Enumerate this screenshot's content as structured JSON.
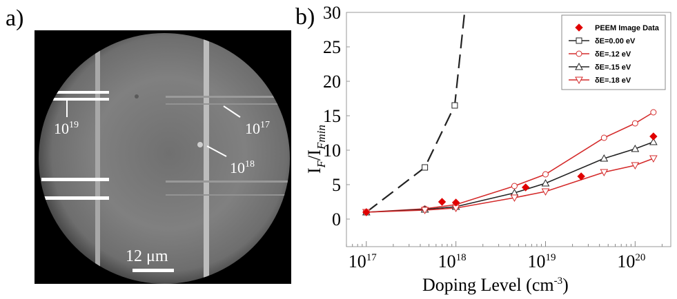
{
  "panels": {
    "a_label": "a)",
    "b_label": "b)"
  },
  "micrograph": {
    "annotations": [
      {
        "base": "10",
        "exp": "19"
      },
      {
        "base": "10",
        "exp": "17"
      },
      {
        "base": "10",
        "exp": "18"
      }
    ],
    "scalebar": "12 μm"
  },
  "colors": {
    "black_series": "#222222",
    "red_series": "#d42a2a",
    "peem_marker": "#e00000"
  },
  "chart_data": {
    "type": "line",
    "x_scale": "log",
    "xlim": [
      60000000000000000,
      250000000000000000000
    ],
    "ylim": [
      -4,
      30
    ],
    "xlabel_main": "Doping Level (cm",
    "xlabel_exp": "-3",
    "xlabel_close": ")",
    "ylabel": {
      "I": "I",
      "F": "F",
      "slash": "/I",
      "Fmin": "Fmin"
    },
    "y_ticks": [
      "0",
      "5",
      "10",
      "15",
      "20",
      "25",
      "30"
    ],
    "x_ticks": [
      {
        "base": "10",
        "exp": "17"
      },
      {
        "base": "10",
        "exp": "18"
      },
      {
        "base": "10",
        "exp": "19"
      },
      {
        "base": "10",
        "exp": "20"
      }
    ],
    "legend_placement": "top-right",
    "series": [
      {
        "name": "PEEM Image Data",
        "marker": "diamond",
        "line": "none",
        "x": [
          100000000000000000,
          700000000000000000,
          1000000000000000000,
          6000000000000000000,
          25000000000000000000,
          160000000000000000000
        ],
        "y": [
          1.0,
          2.5,
          2.4,
          4.6,
          6.2,
          12.0
        ]
      },
      {
        "name": "δE=0.00 eV",
        "marker": "square",
        "line": "dashed",
        "x": [
          100000000000000000,
          450000000000000000,
          970000000000000000,
          1250000000000000000
        ],
        "y": [
          1.0,
          7.5,
          16.5,
          30.0
        ]
      },
      {
        "name": "δE=.12 eV",
        "marker": "circle",
        "line": "solid",
        "x": [
          100000000000000000,
          450000000000000000,
          1000000000000000000,
          4500000000000000000,
          10000000000000000000,
          45000000000000000000,
          100000000000000000000,
          160000000000000000000
        ],
        "y": [
          1.0,
          1.5,
          2.1,
          4.8,
          6.5,
          11.8,
          13.9,
          15.5
        ]
      },
      {
        "name": "δE=.15 eV",
        "marker": "triangle-up",
        "line": "solid",
        "x": [
          100000000000000000,
          450000000000000000,
          1000000000000000000,
          4500000000000000000,
          10000000000000000000,
          45000000000000000000,
          100000000000000000000,
          160000000000000000000
        ],
        "y": [
          1.0,
          1.4,
          1.8,
          3.8,
          5.2,
          8.8,
          10.2,
          11.2
        ]
      },
      {
        "name": "δE=.18 eV",
        "marker": "triangle-down",
        "line": "solid",
        "x": [
          100000000000000000,
          450000000000000000,
          1000000000000000000,
          4500000000000000000,
          10000000000000000000,
          45000000000000000000,
          100000000000000000000,
          160000000000000000000
        ],
        "y": [
          1.0,
          1.3,
          1.6,
          3.1,
          4.0,
          6.8,
          7.8,
          8.8
        ]
      }
    ]
  }
}
